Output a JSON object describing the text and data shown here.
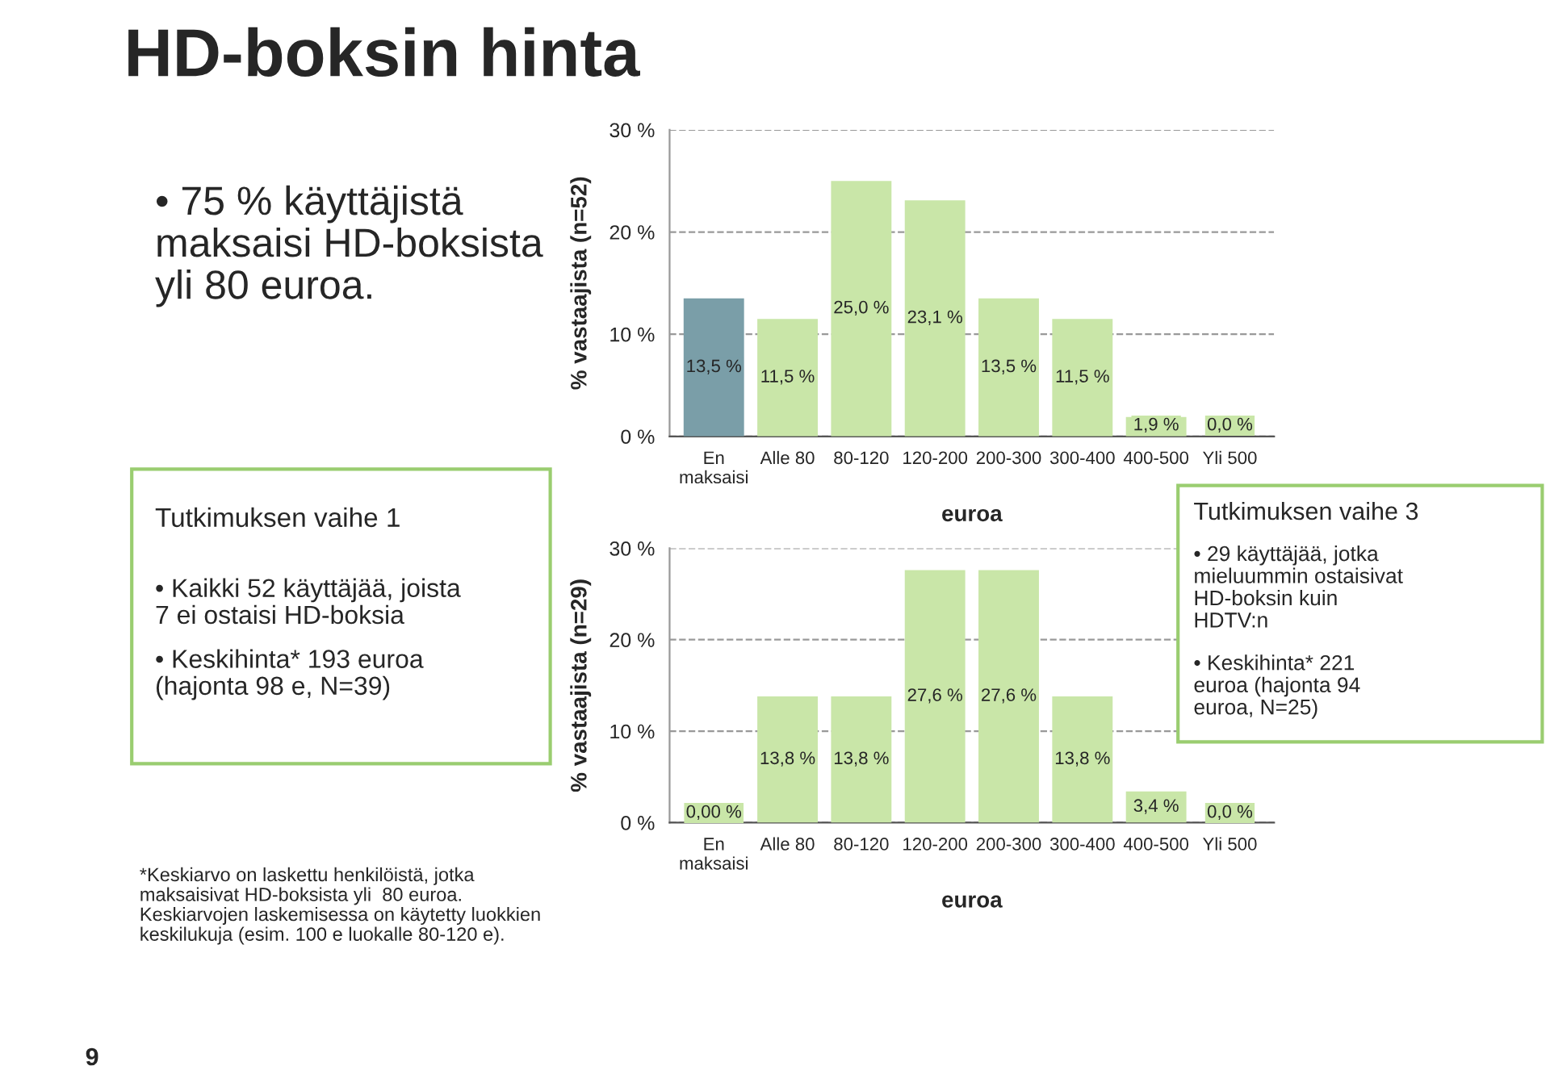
{
  "chart_data": [
    {
      "type": "bar",
      "title": "HD-boksin hinta",
      "xlabel": "euroa",
      "ylabel": "% vastaajista (n=52)",
      "categories": [
        "En\nmaksaisi",
        "Alle 80",
        "80-120",
        "120-200",
        "200-300",
        "300-400",
        "400-500",
        "Yli 500"
      ],
      "values": [
        13.5,
        11.5,
        25.0,
        23.1,
        13.5,
        11.5,
        1.9,
        0.0
      ],
      "colors": [
        "#7a9ea8",
        "#c9e6a8",
        "#c9e6a8",
        "#c9e6a8",
        "#c9e6a8",
        "#c9e6a8",
        "#c9e6a8",
        "#c9e6a8"
      ],
      "value_labels": [
        "13,5 %",
        "11,5 %",
        "25,0 %",
        "23,1 %",
        "13,5 %",
        "11,5 %",
        "1,9 %",
        "0,0 %"
      ],
      "ylim": [
        0,
        30
      ],
      "yticks": [
        {
          "value": 0,
          "label": "0 %"
        },
        {
          "value": 10,
          "label": "10 %"
        },
        {
          "value": 20,
          "label": "20 %"
        },
        {
          "value": 30,
          "label": "30 %"
        }
      ],
      "grid": "y",
      "legend": false,
      "annotations": [
        "• 75 % käyttäjistä\nmaksaisi HD-boksista\nyli 80 euroa.",
        "Tutkimuksen vaihe 1",
        "• Kaikki 52 käyttäjää, joista\n7 ei ostaisi HD-boksia",
        "• Keskihinta* 193 euroa\n(hajonta 98 e, N=39)",
        "*Keskiarvo on laskettu henkilöistä, jotka\nmaksaisivat HD-boksista yli  80 euroa.\nKeskiarvojen laskemisessa on käytetty luokkien\nkeskilukuja (esim. 100 e luokalle 80-120 e).",
        "9"
      ]
    },
    {
      "type": "bar",
      "xlabel": "euroa",
      "ylabel": "% vastaajista (n=29)",
      "categories": [
        "En\nmaksaisi",
        "Alle 80",
        "80-120",
        "120-200",
        "200-300",
        "300-400",
        "400-500",
        "Yli 500"
      ],
      "values": [
        0.0,
        13.8,
        13.8,
        27.6,
        27.6,
        13.8,
        3.4,
        0.0
      ],
      "colors": [
        "#c9e6a8",
        "#c9e6a8",
        "#c9e6a8",
        "#c9e6a8",
        "#c9e6a8",
        "#c9e6a8",
        "#c9e6a8",
        "#c9e6a8"
      ],
      "value_labels": [
        "0,00 %",
        "13,8 %",
        "13,8 %",
        "27,6 %",
        "27,6 %",
        "13,8 %",
        "3,4 %",
        "0,0 %"
      ],
      "ylim": [
        0,
        30
      ],
      "yticks": [
        {
          "value": 0,
          "label": "0 %"
        },
        {
          "value": 10,
          "label": "10 %"
        },
        {
          "value": 20,
          "label": "20 %"
        },
        {
          "value": 30,
          "label": "30 %"
        }
      ],
      "grid": "y",
      "legend": false,
      "annotations": [
        "Tutkimuksen vaihe 3",
        "• 29 käyttäjää, jotka\nmieluummin ostaisivat\nHD-boksin kuin\nHDTV:n",
        "• Keskihinta* 221\neuroa (hajonta 94\neuroa, N=25)"
      ]
    }
  ]
}
